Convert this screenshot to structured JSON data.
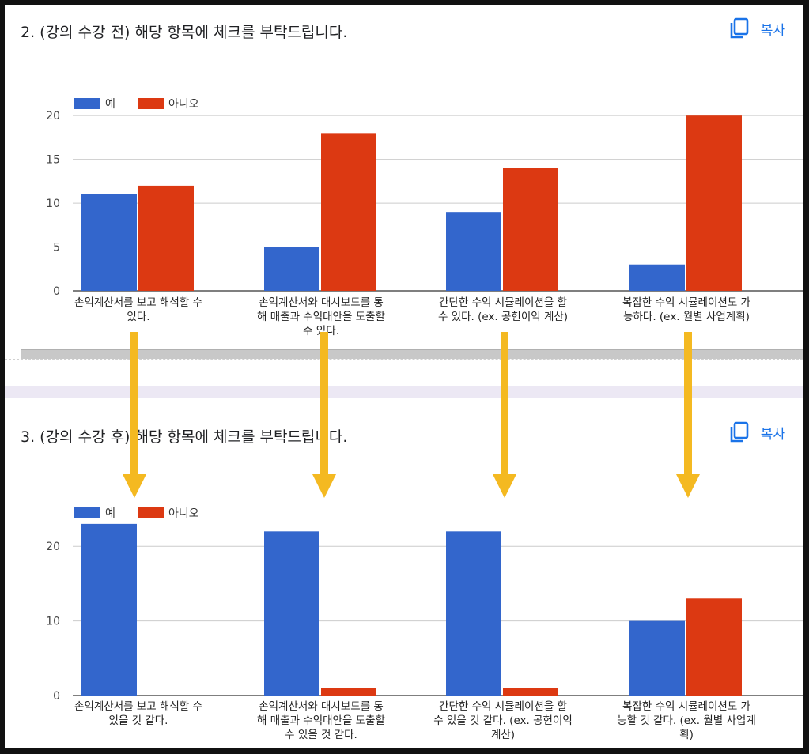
{
  "section1": {
    "title": "2. (강의 수강 전) 해당 항목에 체크를 부탁드립니다.",
    "copy_label": "복사"
  },
  "section2": {
    "title": "3. (강의 수강 후) 해당 항목에 체크를 부탁드립니다.",
    "copy_label": "복사"
  },
  "colors": {
    "yes": "#3366cc",
    "no": "#dc3912",
    "arrow": "#f4b921"
  },
  "chart_data": [
    {
      "type": "bar",
      "legend": [
        "예",
        "아니오"
      ],
      "legend_position": "top-left",
      "categories": [
        [
          "손익계산서를 보고 해석할 수",
          "있다."
        ],
        [
          "손익계산서와 대시보드를 통",
          "해 매출과 수익대안을 도출할",
          "수 있다."
        ],
        [
          "간단한 수익 시뮬레이션을 할",
          "수 있다. (ex. 공헌이익 계산)"
        ],
        [
          "복잡한 수익 시뮬레이션도 가",
          "능하다. (ex. 월별 사업계획)"
        ]
      ],
      "series": [
        {
          "name": "예",
          "values": [
            11,
            5,
            9,
            3
          ]
        },
        {
          "name": "아니오",
          "values": [
            12,
            18,
            14,
            20
          ]
        }
      ],
      "ylim": [
        0,
        22
      ],
      "yticks": [
        0,
        5,
        10,
        15,
        20
      ],
      "grid": true
    },
    {
      "type": "bar",
      "legend": [
        "예",
        "아니오"
      ],
      "legend_position": "top-left",
      "categories": [
        [
          "손익계산서를 보고 해석할 수",
          "있을 것 같다."
        ],
        [
          "손익계산서와 대시보드를 통",
          "해 매출과 수익대안을 도출할",
          "수 있을 것 같다."
        ],
        [
          "간단한 수익 시뮬레이션을 할",
          "수 있을 것 같다. (ex. 공헌이익",
          "계산)"
        ],
        [
          "복잡한 수익 시뮬레이션도 가",
          "능할 것 같다. (ex. 월별 사업계",
          "획)"
        ]
      ],
      "series": [
        {
          "name": "예",
          "values": [
            23,
            22,
            22,
            10
          ]
        },
        {
          "name": "아니오",
          "values": [
            0,
            1,
            1,
            13
          ]
        }
      ],
      "ylim": [
        0,
        25
      ],
      "yticks": [
        0,
        10,
        20
      ],
      "grid": true
    }
  ]
}
